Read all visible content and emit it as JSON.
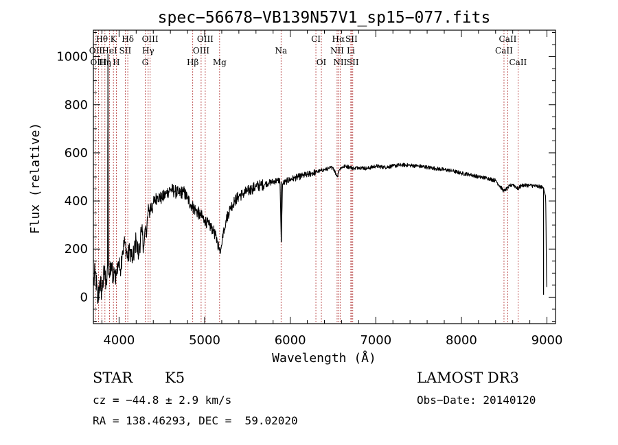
{
  "chart_data": {
    "type": "line",
    "title": "spec−56678−VB139N57V1_sp15−077.fits",
    "xlabel": "Wavelength (Å)",
    "ylabel": "Flux (relative)",
    "xlim": [
      3700,
      9100
    ],
    "ylim": [
      -110,
      1110
    ],
    "xticks": [
      4000,
      5000,
      6000,
      7000,
      8000,
      9000
    ],
    "yticks": [
      0,
      200,
      400,
      600,
      800,
      1000
    ],
    "series": [
      {
        "name": "flux",
        "x": [
          3700,
          3725,
          3750,
          3775,
          3800,
          3825,
          3850,
          3865,
          3870,
          3875,
          3890,
          3910,
          3930,
          3950,
          3970,
          3990,
          4010,
          4040,
          4070,
          4100,
          4130,
          4160,
          4200,
          4230,
          4260,
          4290,
          4310,
          4320,
          4330,
          4350,
          4400,
          4450,
          4500,
          4550,
          4600,
          4650,
          4700,
          4750,
          4800,
          4850,
          4900,
          4950,
          5000,
          5050,
          5100,
          5150,
          5170,
          5183,
          5195,
          5210,
          5250,
          5300,
          5350,
          5400,
          5450,
          5500,
          5550,
          5600,
          5650,
          5700,
          5750,
          5800,
          5850,
          5880,
          5890,
          5896,
          5900,
          5910,
          5950,
          6000,
          6050,
          6100,
          6150,
          6200,
          6250,
          6300,
          6350,
          6400,
          6450,
          6500,
          6550,
          6563,
          6575,
          6600,
          6650,
          6700,
          6750,
          6800,
          6900,
          7000,
          7100,
          7200,
          7300,
          7400,
          7500,
          7600,
          7700,
          7800,
          7900,
          8000,
          8100,
          8200,
          8300,
          8400,
          8498,
          8542,
          8600,
          8662,
          8700,
          8800,
          8900,
          8960,
          8985,
          8990,
          8995,
          9000
        ],
        "y": [
          50,
          110,
          -30,
          70,
          20,
          100,
          60,
          130,
          1010,
          120,
          80,
          140,
          60,
          110,
          90,
          150,
          110,
          190,
          230,
          160,
          200,
          150,
          240,
          170,
          280,
          210,
          300,
          240,
          330,
          360,
          390,
          420,
          410,
          430,
          450,
          440,
          430,
          440,
          410,
          380,
          360,
          340,
          320,
          300,
          280,
          230,
          200,
          180,
          210,
          260,
          320,
          370,
          400,
          420,
          430,
          440,
          450,
          460,
          465,
          470,
          475,
          480,
          485,
          485,
          320,
          230,
          300,
          470,
          480,
          490,
          495,
          500,
          505,
          510,
          515,
          520,
          525,
          530,
          535,
          540,
          500,
          520,
          530,
          540,
          545,
          540,
          535,
          540,
          535,
          545,
          540,
          545,
          550,
          548,
          545,
          540,
          535,
          530,
          525,
          515,
          510,
          500,
          495,
          485,
          440,
          455,
          470,
          450,
          465,
          465,
          460,
          455,
          420,
          260,
          90,
          10
        ]
      }
    ],
    "emission_lines": [
      {
        "name": "Hθ",
        "wl": 3798,
        "row": 0
      },
      {
        "name": "K",
        "wl": 3934,
        "row": 0
      },
      {
        "name": "Hδ",
        "wl": 4102,
        "row": 0
      },
      {
        "name": "OIII",
        "wl": 4363,
        "row": 0
      },
      {
        "name": "OIII",
        "wl": 5007,
        "row": 0
      },
      {
        "name": "CI",
        "wl": 6300,
        "row": 0
      },
      {
        "name": "Hα",
        "wl": 6563,
        "row": 0
      },
      {
        "name": "SII",
        "wl": 6716,
        "row": 0
      },
      {
        "name": "CaII",
        "wl": 8542,
        "row": 0
      },
      {
        "name": "OII",
        "wl": 3727,
        "row": 1
      },
      {
        "name": "HeI",
        "wl": 3889,
        "row": 1
      },
      {
        "name": "SII",
        "wl": 4072,
        "row": 1
      },
      {
        "name": "Hγ",
        "wl": 4340,
        "row": 1
      },
      {
        "name": "OIII",
        "wl": 4959,
        "row": 1
      },
      {
        "name": "Na",
        "wl": 5893,
        "row": 1
      },
      {
        "name": "NII",
        "wl": 6548,
        "row": 1
      },
      {
        "name": "Li",
        "wl": 6708,
        "row": 1
      },
      {
        "name": "CaII",
        "wl": 8498,
        "row": 1
      },
      {
        "name": "OIII",
        "wl": 3760,
        "row": 2
      },
      {
        "name": "Hη",
        "wl": 3835,
        "row": 2
      },
      {
        "name": "H",
        "wl": 3968,
        "row": 2
      },
      {
        "name": "G",
        "wl": 4305,
        "row": 2
      },
      {
        "name": "Hβ",
        "wl": 4861,
        "row": 2
      },
      {
        "name": "Mg",
        "wl": 5175,
        "row": 2
      },
      {
        "name": "OI",
        "wl": 6364,
        "row": 2
      },
      {
        "name": "NII",
        "wl": 6583,
        "row": 2
      },
      {
        "name": "SII",
        "wl": 6731,
        "row": 2
      },
      {
        "name": "CaII",
        "wl": 8662,
        "row": 2
      }
    ],
    "grid": false,
    "legend": "none"
  },
  "info": {
    "object_class": "STAR",
    "subclass": "K5",
    "survey": "LAMOST DR3",
    "cz": "cz = −44.8 ± 2.9 km/s",
    "obs_date": "Obs−Date: 20140120",
    "coords": "RA = 138.46293, DEC =  59.02020"
  },
  "colors": {
    "spectrum": "#000000",
    "line_markers": "#b03030",
    "axes": "#000000"
  }
}
